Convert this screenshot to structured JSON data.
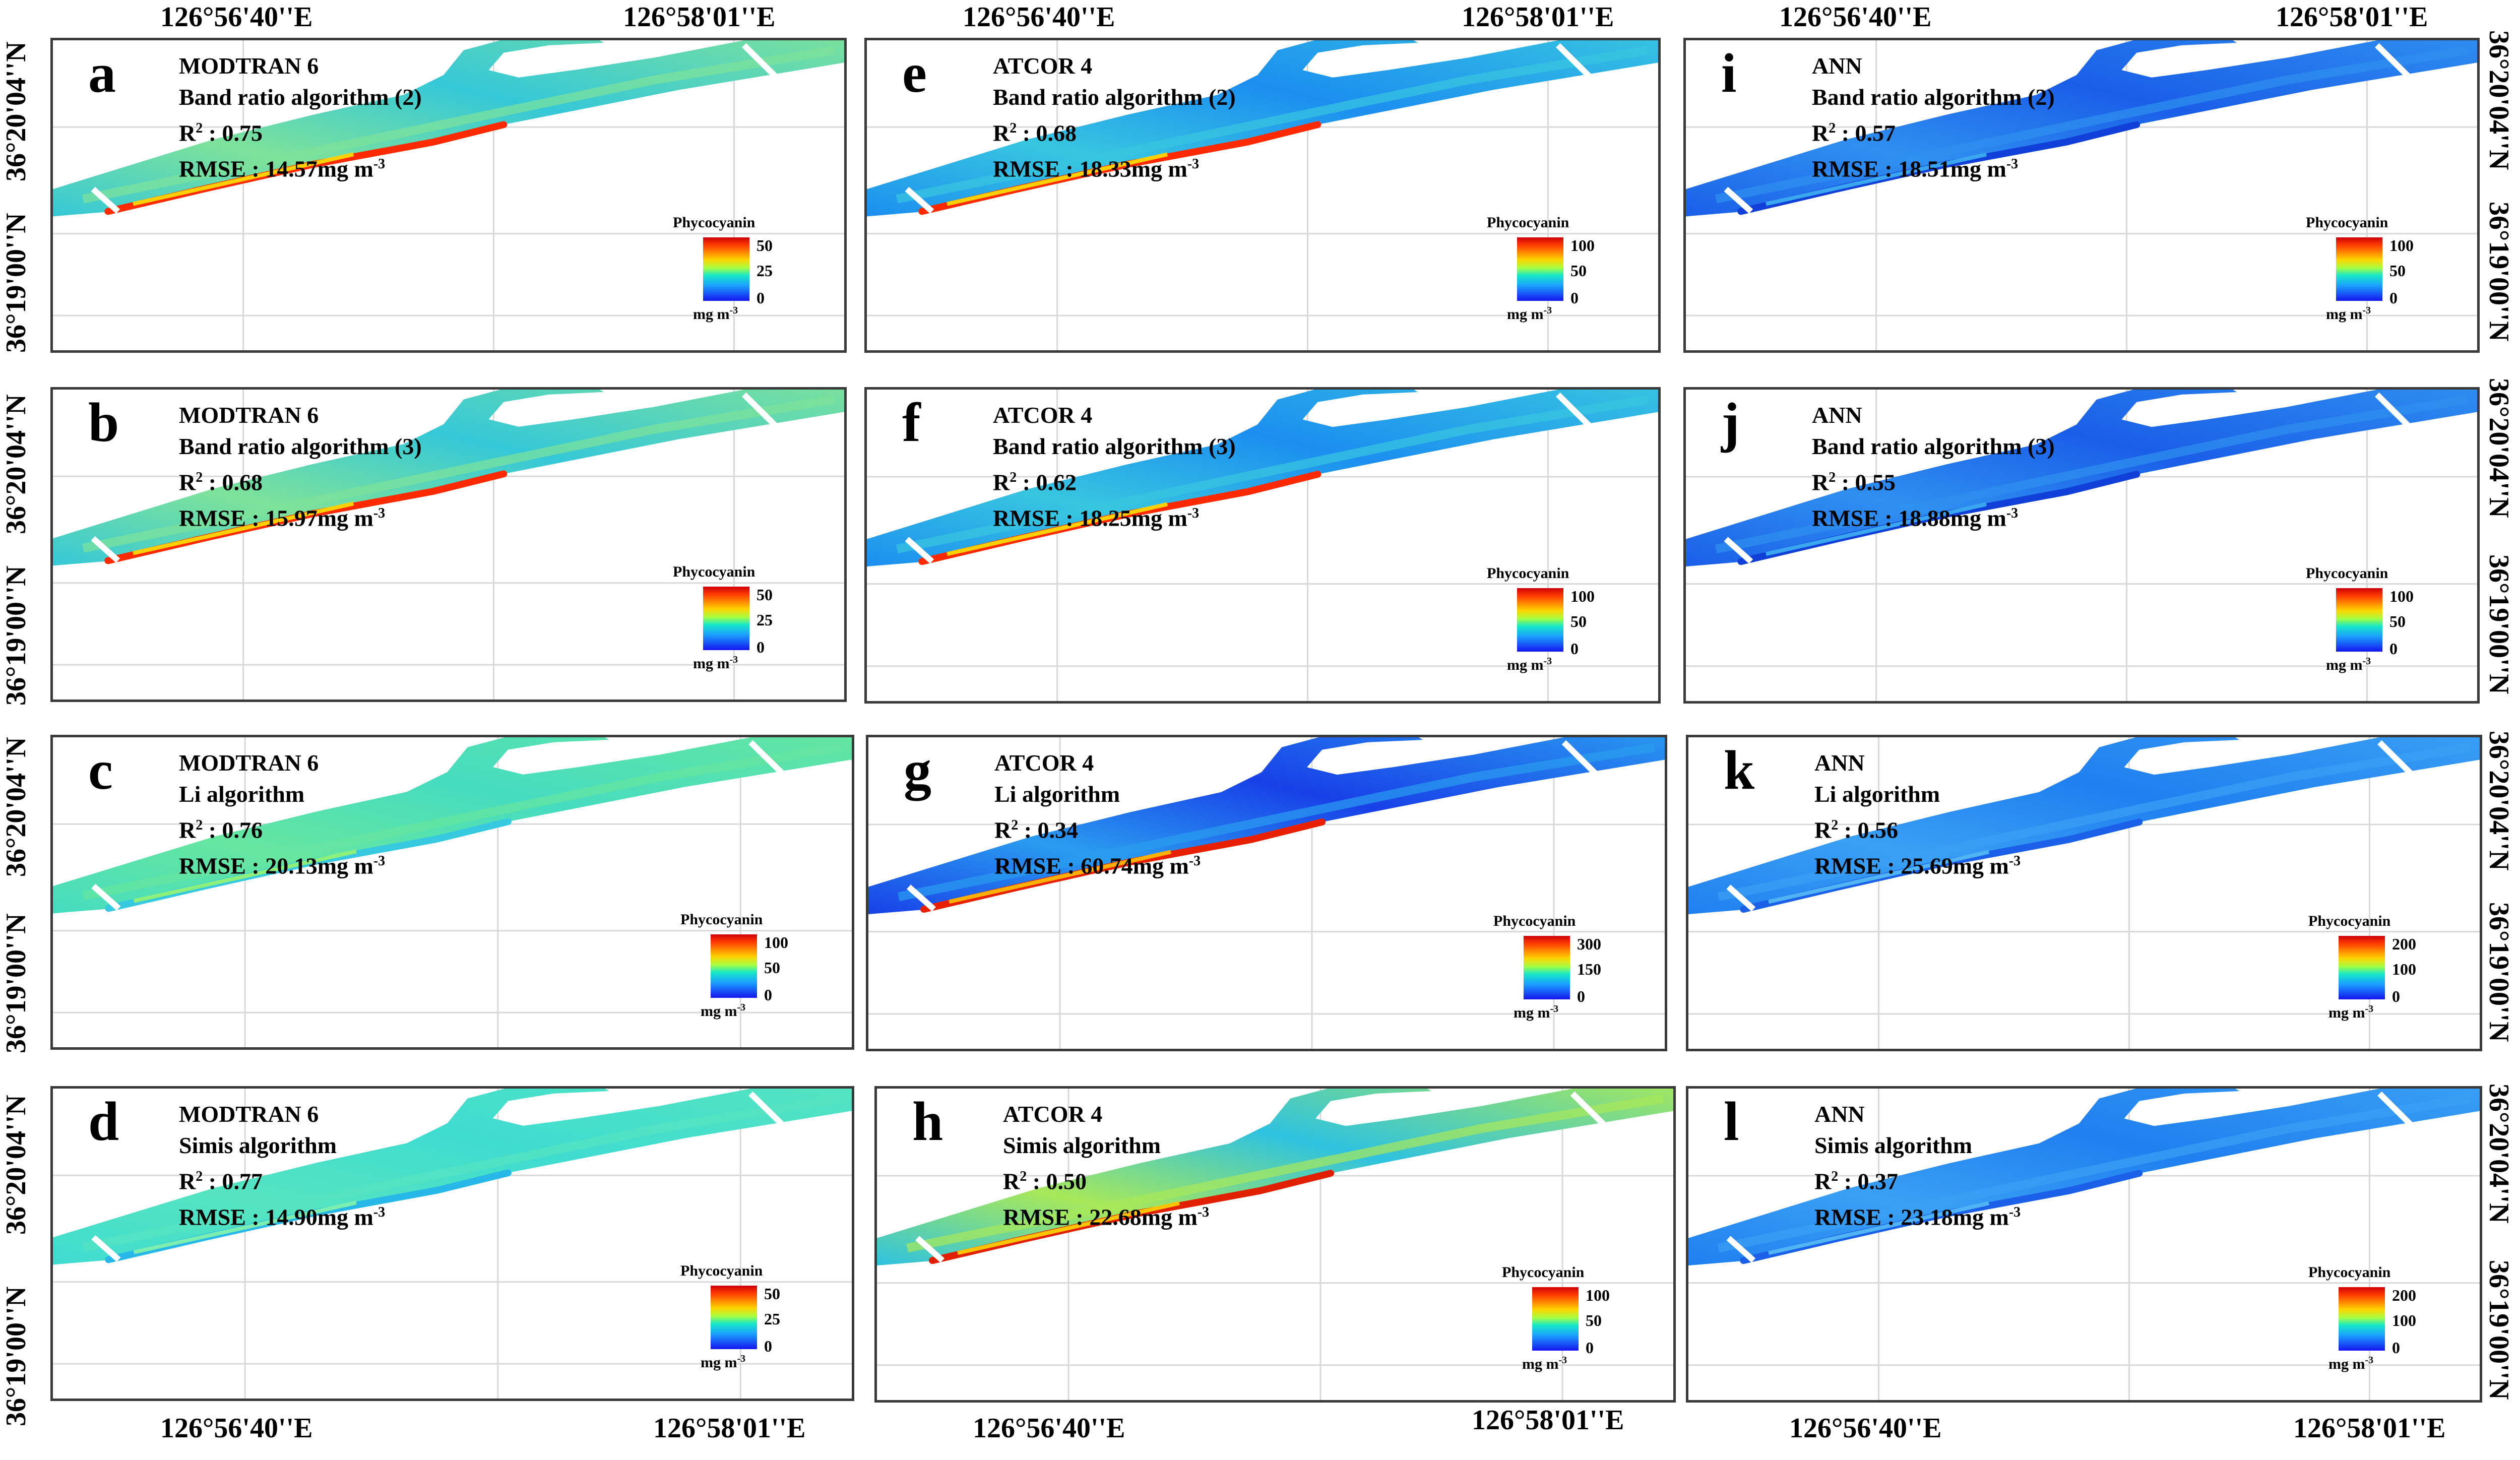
{
  "axes": {
    "lon_left": "126°56'40''E",
    "lon_right": "126°58'01''E",
    "lat_top": "36°20'04''N",
    "lat_bottom": "36°19'00''N"
  },
  "legend": {
    "title": "Phycocyanin",
    "unit": "mg m",
    "unit_exp": "-3"
  },
  "panels": [
    {
      "id": "a",
      "method": "MODTRAN 6",
      "algorithm": "Band ratio algorithm (2)",
      "r2_label": "R",
      "r2_value": ": 0.75",
      "rmse_label": "RMSE : 14.57mg m",
      "scale": [
        "50",
        "25",
        "0"
      ],
      "scheme": "mod_br"
    },
    {
      "id": "b",
      "method": "MODTRAN 6",
      "algorithm": "Band ratio algorithm (3)",
      "r2_label": "R",
      "r2_value": ": 0.68",
      "rmse_label": "RMSE : 15.97mg m",
      "scale": [
        "50",
        "25",
        "0"
      ],
      "scheme": "mod_br"
    },
    {
      "id": "c",
      "method": "MODTRAN 6",
      "algorithm": "Li algorithm",
      "r2_label": "R",
      "r2_value": ": 0.76",
      "rmse_label": "RMSE : 20.13mg m",
      "scale": [
        "100",
        "50",
        "0"
      ],
      "scheme": "mod_li"
    },
    {
      "id": "d",
      "method": "MODTRAN 6",
      "algorithm": "Simis algorithm",
      "r2_label": "R",
      "r2_value": ": 0.77",
      "rmse_label": "RMSE : 14.90mg m",
      "scale": [
        "50",
        "25",
        "0"
      ],
      "scheme": "mod_si"
    },
    {
      "id": "e",
      "method": "ATCOR 4",
      "algorithm": "Band ratio algorithm (2)",
      "r2_label": "R",
      "r2_value": ": 0.68",
      "rmse_label": "RMSE : 18.33mg m",
      "scale": [
        "100",
        "50",
        "0"
      ],
      "scheme": "atc_br"
    },
    {
      "id": "f",
      "method": "ATCOR 4",
      "algorithm": "Band ratio algorithm (3)",
      "r2_label": "R",
      "r2_value": ": 0.62",
      "rmse_label": "RMSE : 18.25mg m",
      "scale": [
        "100",
        "50",
        "0"
      ],
      "scheme": "atc_br"
    },
    {
      "id": "g",
      "method": "ATCOR 4",
      "algorithm": "Li algorithm",
      "r2_label": "R",
      "r2_value": ": 0.34",
      "rmse_label": "RMSE : 60.74mg m",
      "scale": [
        "300",
        "150",
        "0"
      ],
      "scheme": "atc_li"
    },
    {
      "id": "h",
      "method": "ATCOR 4",
      "algorithm": "Simis algorithm",
      "r2_label": "R",
      "r2_value": ": 0.50",
      "rmse_label": "RMSE : 22.68mg m",
      "scale": [
        "100",
        "50",
        "0"
      ],
      "scheme": "atc_si"
    },
    {
      "id": "i",
      "method": "ANN",
      "algorithm": "Band ratio algorithm (2)",
      "r2_label": "R",
      "r2_value": ": 0.57",
      "rmse_label": "RMSE : 18.51mg m",
      "scale": [
        "100",
        "50",
        "0"
      ],
      "scheme": "ann"
    },
    {
      "id": "j",
      "method": "ANN",
      "algorithm": "Band ratio algorithm (3)",
      "r2_label": "R",
      "r2_value": ": 0.55",
      "rmse_label": "RMSE : 18.88mg m",
      "scale": [
        "100",
        "50",
        "0"
      ],
      "scheme": "ann"
    },
    {
      "id": "k",
      "method": "ANN",
      "algorithm": "Li algorithm",
      "r2_label": "R",
      "r2_value": ": 0.56",
      "rmse_label": "RMSE : 25.69mg m",
      "scale": [
        "200",
        "100",
        "0"
      ],
      "scheme": "ann_li"
    },
    {
      "id": "l",
      "method": "ANN",
      "algorithm": "Simis algorithm",
      "r2_label": "R",
      "r2_value": ": 0.37",
      "rmse_label": "RMSE : 23.18mg m",
      "scale": [
        "200",
        "100",
        "0"
      ],
      "scheme": "ann_li"
    }
  ],
  "colors": {
    "mod_br": {
      "base": "#35c8d8",
      "core": "#7ee29a",
      "edge": "#ff2a00",
      "accent": "#ffd000"
    },
    "mod_li": {
      "base": "#45dcc0",
      "core": "#66e6a0",
      "edge": "#36c9e0",
      "accent": "#8cf07a"
    },
    "mod_si": {
      "base": "#3fdcd0",
      "core": "#55e4c0",
      "edge": "#28b8e8",
      "accent": "#7cefb0"
    },
    "atc_br": {
      "base": "#1c8ef0",
      "core": "#37c6e0",
      "edge": "#ff2a00",
      "accent": "#ffd000"
    },
    "atc_li": {
      "base": "#1840e8",
      "core": "#2a9cf0",
      "edge": "#e82000",
      "accent": "#ffb000"
    },
    "atc_si": {
      "base": "#2ec2e0",
      "core": "#a8e85a",
      "edge": "#e02000",
      "accent": "#ffc400"
    },
    "ann": {
      "base": "#1a5ee8",
      "core": "#2f90f0",
      "edge": "#1040d8",
      "accent": "#3aa6f0"
    },
    "ann_li": {
      "base": "#1f7ff0",
      "core": "#3aa0f4",
      "edge": "#1a60e8",
      "accent": "#50b4f4"
    }
  }
}
